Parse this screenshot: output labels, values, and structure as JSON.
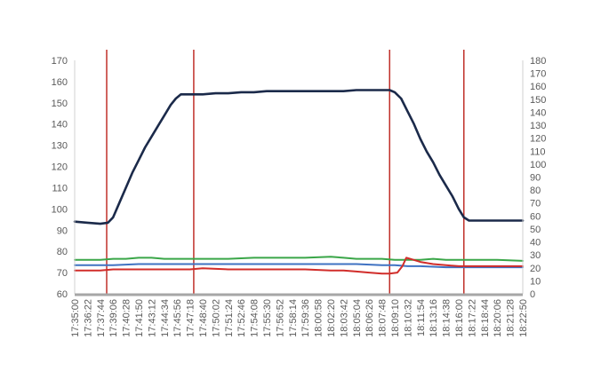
{
  "chart_data": {
    "type": "line",
    "title": "",
    "xlabel": "",
    "ylabel_left": "",
    "ylabel_right": "",
    "y_left": {
      "min": 60,
      "max": 170,
      "ticks": [
        "60",
        "70",
        "80",
        "90",
        "100",
        "110",
        "120",
        "130",
        "140",
        "150",
        "160",
        "170"
      ]
    },
    "y_right": {
      "min": 0,
      "max": 180,
      "ticks": [
        "0",
        "10",
        "20",
        "30",
        "40",
        "50",
        "60",
        "70",
        "80",
        "90",
        "100",
        "110",
        "120",
        "130",
        "140",
        "150",
        "160",
        "170",
        "180"
      ]
    },
    "x_labels": [
      "17:35:00",
      "17:36:22",
      "17:37:44",
      "17:39:06",
      "17:40:28",
      "17:41:50",
      "17:43:12",
      "17:44:34",
      "17:45:56",
      "17:47:18",
      "17:48:40",
      "17:50:02",
      "17:51:24",
      "17:52:46",
      "17:54:08",
      "17:55:30",
      "17:56:52",
      "17:58:14",
      "17:59:36",
      "18:00:58",
      "18:02:20",
      "18:03:42",
      "18:05:04",
      "18:06:26",
      "18:07:48",
      "18:09:10",
      "18:10:32",
      "18:11:54",
      "18:13:16",
      "18:14:38",
      "18:16:00",
      "18:17:22",
      "18:18:44",
      "18:20:06",
      "18:21:28",
      "18:22:50"
    ],
    "grid": false,
    "legend": "none",
    "vertical_markers": {
      "color": "#c0302a",
      "x": [
        2.5,
        9.3,
        24.6,
        30.4
      ]
    },
    "series": [
      {
        "axis": "left",
        "color": "#1b2a4a",
        "points": [
          [
            0,
            94
          ],
          [
            1,
            93.5
          ],
          [
            2,
            93
          ],
          [
            2.6,
            93.5
          ],
          [
            3,
            96
          ],
          [
            3.5,
            103
          ],
          [
            4,
            110
          ],
          [
            4.5,
            117
          ],
          [
            5,
            123
          ],
          [
            5.5,
            129
          ],
          [
            6,
            134
          ],
          [
            6.5,
            139
          ],
          [
            7,
            144
          ],
          [
            7.5,
            149
          ],
          [
            7.9,
            152
          ],
          [
            8.3,
            154
          ],
          [
            9,
            154
          ],
          [
            10,
            154
          ],
          [
            11,
            154.5
          ],
          [
            12,
            154.5
          ],
          [
            13,
            155
          ],
          [
            14,
            155
          ],
          [
            15,
            155.5
          ],
          [
            16,
            155.5
          ],
          [
            17,
            155.5
          ],
          [
            18,
            155.5
          ],
          [
            19,
            155.5
          ],
          [
            20,
            155.5
          ],
          [
            21,
            155.5
          ],
          [
            22,
            156
          ],
          [
            23,
            156
          ],
          [
            24,
            156
          ],
          [
            24.6,
            156
          ],
          [
            25,
            155
          ],
          [
            25.5,
            152
          ],
          [
            26,
            146
          ],
          [
            26.5,
            140
          ],
          [
            27,
            133
          ],
          [
            27.5,
            127
          ],
          [
            28,
            122
          ],
          [
            28.5,
            116
          ],
          [
            29,
            111
          ],
          [
            29.5,
            106
          ],
          [
            30,
            100
          ],
          [
            30.4,
            96
          ],
          [
            30.8,
            94.5
          ],
          [
            31.5,
            94.5
          ],
          [
            33,
            94.5
          ],
          [
            35,
            94.5
          ]
        ]
      },
      {
        "axis": "left",
        "color": "#3aa648",
        "points": [
          [
            0,
            76
          ],
          [
            2,
            76
          ],
          [
            3,
            76.5
          ],
          [
            4,
            76.5
          ],
          [
            5,
            77
          ],
          [
            6,
            77
          ],
          [
            7,
            76.5
          ],
          [
            8,
            76.5
          ],
          [
            9,
            76.5
          ],
          [
            10,
            76.5
          ],
          [
            12,
            76.5
          ],
          [
            14,
            77
          ],
          [
            16,
            77
          ],
          [
            18,
            77
          ],
          [
            20,
            77.5
          ],
          [
            21,
            77
          ],
          [
            22,
            76.5
          ],
          [
            23,
            76.5
          ],
          [
            24,
            76.5
          ],
          [
            25,
            76
          ],
          [
            26,
            76
          ],
          [
            27,
            76
          ],
          [
            28,
            76.5
          ],
          [
            29,
            76
          ],
          [
            30,
            76
          ],
          [
            31,
            76
          ],
          [
            33,
            76
          ],
          [
            35,
            75.5
          ]
        ]
      },
      {
        "axis": "left",
        "color": "#3f72c2",
        "points": [
          [
            0,
            73.5
          ],
          [
            3,
            73.5
          ],
          [
            5,
            74
          ],
          [
            8,
            74
          ],
          [
            10,
            74
          ],
          [
            15,
            74
          ],
          [
            20,
            74
          ],
          [
            22,
            74
          ],
          [
            24,
            73.5
          ],
          [
            25,
            73.5
          ],
          [
            26,
            73
          ],
          [
            27,
            73
          ],
          [
            29,
            72.5
          ],
          [
            31,
            72.5
          ],
          [
            33,
            72.5
          ],
          [
            35,
            72.5
          ]
        ]
      },
      {
        "axis": "left",
        "color": "#d12d2a",
        "points": [
          [
            0,
            71
          ],
          [
            2,
            71
          ],
          [
            3,
            71.5
          ],
          [
            5,
            71.5
          ],
          [
            8,
            71.5
          ],
          [
            9,
            71.5
          ],
          [
            10,
            72
          ],
          [
            12,
            71.5
          ],
          [
            15,
            71.5
          ],
          [
            18,
            71.5
          ],
          [
            20,
            71
          ],
          [
            21,
            71
          ],
          [
            22,
            70.5
          ],
          [
            23,
            70
          ],
          [
            24,
            69.5
          ],
          [
            24.6,
            69.5
          ],
          [
            25.2,
            70
          ],
          [
            25.6,
            73
          ],
          [
            25.9,
            77
          ],
          [
            26.2,
            76.5
          ],
          [
            27,
            75
          ],
          [
            28,
            74
          ],
          [
            29,
            73.5
          ],
          [
            30,
            73
          ],
          [
            31,
            73
          ],
          [
            33,
            73
          ],
          [
            35,
            73
          ]
        ]
      }
    ]
  }
}
